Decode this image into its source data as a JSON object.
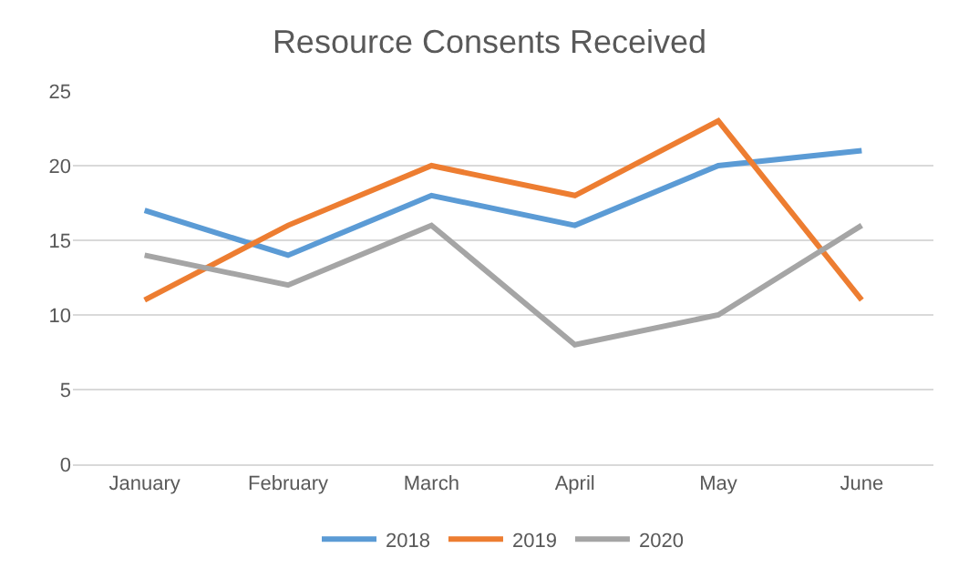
{
  "chart_data": {
    "type": "line",
    "title": "Resource Consents Received",
    "categories": [
      "January",
      "February",
      "March",
      "April",
      "May",
      "June"
    ],
    "series": [
      {
        "name": "2018",
        "color": "#5b9bd5",
        "values": [
          17,
          14,
          18,
          16,
          20,
          21
        ]
      },
      {
        "name": "2019",
        "color": "#ed7d31",
        "values": [
          11,
          16,
          20,
          18,
          23,
          11
        ]
      },
      {
        "name": "2020",
        "color": "#a5a5a5",
        "values": [
          14,
          12,
          16,
          8,
          10,
          16
        ]
      }
    ],
    "ylim": [
      0,
      25
    ],
    "yticks": [
      0,
      5,
      10,
      15,
      20,
      25
    ],
    "grid": "y",
    "legend": "bottom",
    "marker": "none",
    "line_style": "solid"
  }
}
